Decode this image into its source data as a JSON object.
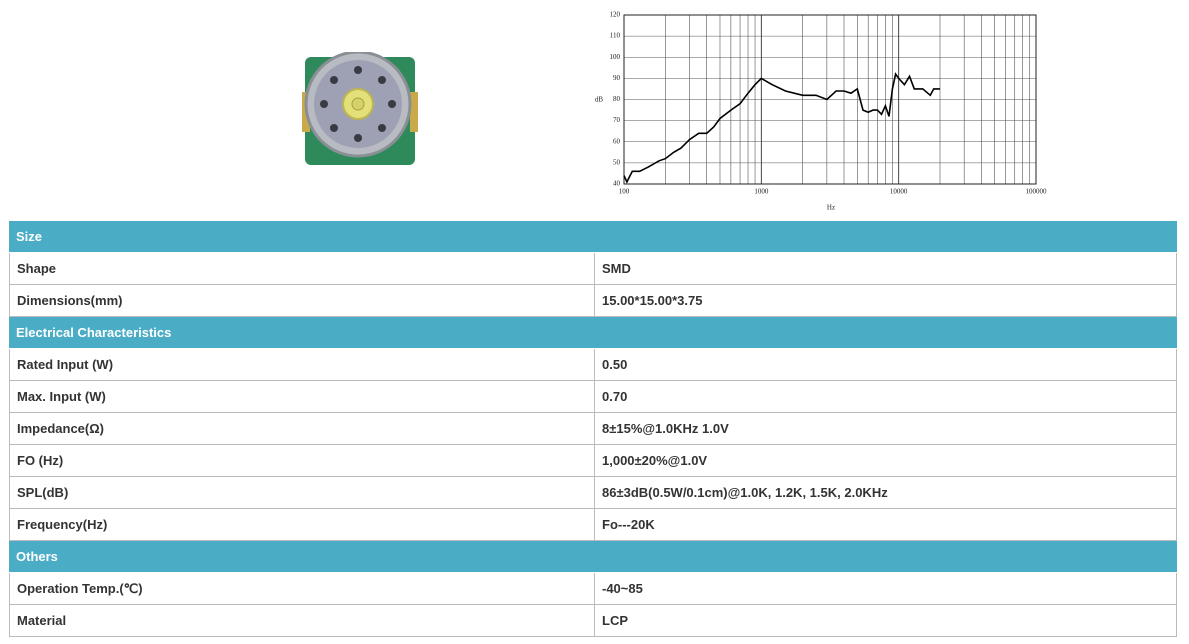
{
  "chart_data": {
    "type": "line",
    "xlabel": "Hz",
    "ylabel": "dB",
    "log_x": true,
    "grid": true,
    "xlim": [
      100,
      100000
    ],
    "ylim": [
      40,
      120
    ],
    "xticks": [
      100,
      1000,
      10000,
      100000
    ],
    "yticks": [
      40,
      50,
      60,
      70,
      80,
      90,
      100,
      110,
      120
    ],
    "x": [
      100,
      105,
      115,
      130,
      150,
      180,
      200,
      230,
      260,
      300,
      350,
      400,
      450,
      500,
      600,
      700,
      800,
      900,
      1000,
      1200,
      1500,
      2000,
      2500,
      3000,
      3500,
      4000,
      4500,
      5000,
      5500,
      6000,
      6500,
      7000,
      7500,
      8000,
      8500,
      9000,
      9500,
      10000,
      11000,
      12000,
      13000,
      15000,
      17000,
      18000,
      20000
    ],
    "series": [
      {
        "color": "#000000",
        "values": [
          44,
          41,
          46,
          46,
          48,
          51,
          52,
          55,
          57,
          61,
          64,
          64,
          67,
          71,
          75,
          78,
          83,
          87,
          90,
          87,
          84,
          82,
          82,
          80,
          84,
          84,
          83,
          85,
          75,
          74,
          75,
          75,
          73,
          77,
          72,
          85,
          92,
          90,
          87,
          91,
          85,
          85,
          82,
          85,
          85
        ]
      }
    ]
  },
  "table": {
    "sections": [
      {
        "title": "Size",
        "rows": [
          [
            "Shape",
            "SMD"
          ],
          [
            "Dimensions(mm)",
            "15.00*15.00*3.75"
          ]
        ]
      },
      {
        "title": "Electrical Characteristics",
        "rows": [
          [
            "Rated Input (W)",
            "0.50"
          ],
          [
            "Max. Input (W)",
            "0.70"
          ],
          [
            "Impedance(Ω)",
            "8±15%@1.0KHz 1.0V"
          ],
          [
            "FO (Hz)",
            "1,000±20%@1.0V"
          ],
          [
            "SPL(dB)",
            "86±3dB(0.5W/0.1cm)@1.0K, 1.2K, 1.5K, 2.0KHz"
          ],
          [
            "Frequency(Hz)",
            "Fo---20K"
          ]
        ]
      },
      {
        "title": "Others",
        "rows": [
          [
            "Operation Temp.(℃)",
            "-40~85"
          ],
          [
            "Material",
            "LCP"
          ]
        ]
      }
    ]
  }
}
